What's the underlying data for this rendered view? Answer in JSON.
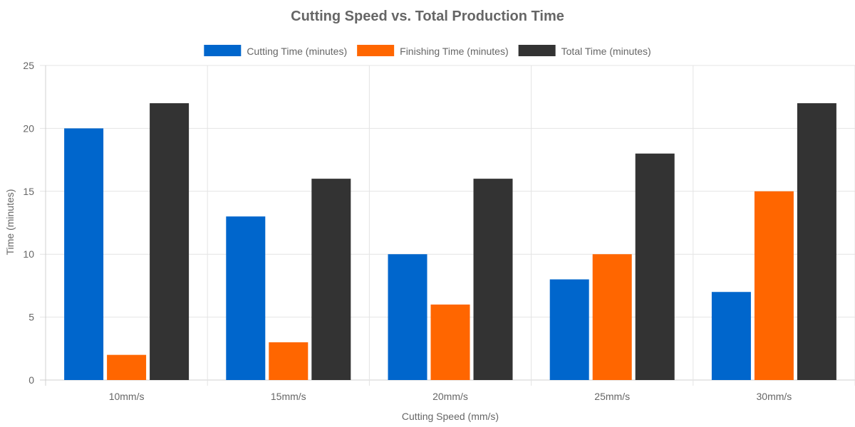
{
  "chart_data": {
    "type": "bar",
    "title": "Cutting Speed vs. Total Production Time",
    "xlabel": "Cutting Speed (mm/s)",
    "ylabel": "Time (minutes)",
    "categories": [
      "10mm/s",
      "15mm/s",
      "20mm/s",
      "25mm/s",
      "30mm/s"
    ],
    "ylim": [
      0,
      25
    ],
    "yticks": [
      0,
      5,
      10,
      15,
      20,
      25
    ],
    "grid": true,
    "legend_position": "top",
    "series": [
      {
        "name": "Cutting Time (minutes)",
        "values": [
          20,
          13,
          10,
          8,
          7
        ],
        "color": "#0066cc"
      },
      {
        "name": "Finishing Time (minutes)",
        "values": [
          2,
          3,
          6,
          10,
          15
        ],
        "color": "#ff6600"
      },
      {
        "name": "Total Time (minutes)",
        "values": [
          22,
          16,
          16,
          18,
          22
        ],
        "color": "#333333"
      }
    ]
  }
}
